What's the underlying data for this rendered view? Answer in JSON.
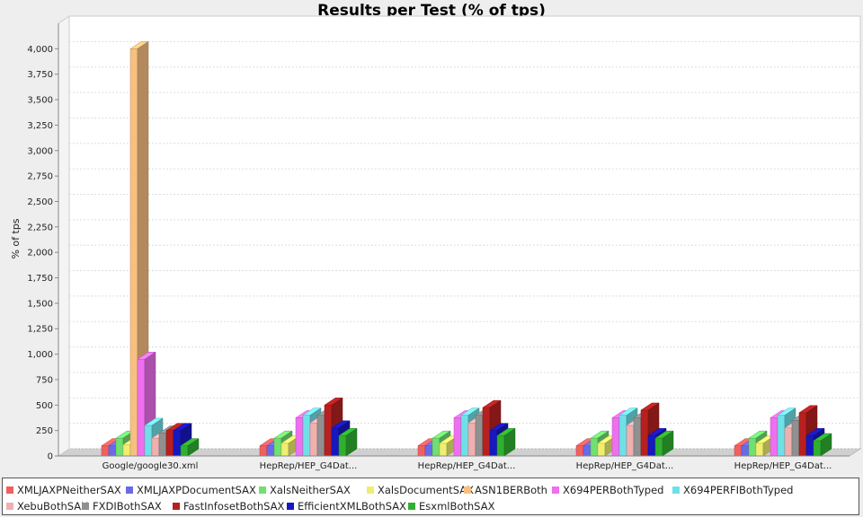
{
  "chart_data": {
    "type": "bar",
    "title": "Results per Test (% of tps)",
    "ylabel": "% of tps",
    "xlabel": "",
    "ylim": [
      0,
      4250
    ],
    "yticks": [
      0,
      250,
      500,
      750,
      1000,
      1250,
      1500,
      1750,
      2000,
      2250,
      2500,
      2750,
      3000,
      3250,
      3500,
      3750,
      4000
    ],
    "ytick_labels": [
      "0",
      "250",
      "500",
      "750",
      "1,000",
      "1,250",
      "1,500",
      "1,750",
      "2,000",
      "2,250",
      "2,500",
      "2,750",
      "3,000",
      "3,250",
      "3,500",
      "3,750",
      "4,000"
    ],
    "grid": true,
    "legend_position": "bottom",
    "categories": [
      "Google/google30.xml",
      "HepRep/HEP_G4Dat...",
      "HepRep/HEP_G4Dat...",
      "HepRep/HEP_G4Dat...",
      "HepRep/HEP_G4Dat..."
    ],
    "series": [
      {
        "name": "XMLJAXPNeitherSAX",
        "color": "#f06060",
        "values": [
          100,
          100,
          100,
          100,
          100
        ]
      },
      {
        "name": "XMLJAXPDocumentSAX",
        "color": "#6a6ae8",
        "values": [
          100,
          100,
          100,
          100,
          100
        ]
      },
      {
        "name": "XalsNeitherSAX",
        "color": "#70e070",
        "values": [
          175,
          175,
          175,
          175,
          175
        ]
      },
      {
        "name": "XalsDocumentSAX",
        "color": "#eeee70",
        "values": [
          110,
          125,
          125,
          125,
          125
        ]
      },
      {
        "name": "ASN1BERBoth",
        "color": "#f8c080",
        "values": [
          4000,
          0,
          0,
          0,
          0
        ]
      },
      {
        "name": "X694PERBothTyped",
        "color": "#ee70ee",
        "values": [
          950,
          375,
          375,
          375,
          375
        ]
      },
      {
        "name": "X694PERFIBothTyped",
        "color": "#70e0e8",
        "values": [
          300,
          400,
          400,
          400,
          400
        ]
      },
      {
        "name": "XebuBothSAX",
        "color": "#f0b0b0",
        "values": [
          175,
          325,
          325,
          300,
          275
        ]
      },
      {
        "name": "FXDIBothSAX",
        "color": "#909090",
        "values": [
          225,
          400,
          400,
          375,
          350
        ]
      },
      {
        "name": "FastInfosetBothSAX",
        "color": "#b82020",
        "values": [
          250,
          500,
          475,
          450,
          425
        ]
      },
      {
        "name": "EfficientXMLBothSAX",
        "color": "#1818c0",
        "values": [
          250,
          275,
          250,
          200,
          200
        ]
      },
      {
        "name": "EsxmlBothSAX",
        "color": "#30b030",
        "values": [
          100,
          200,
          200,
          175,
          150
        ]
      }
    ]
  }
}
